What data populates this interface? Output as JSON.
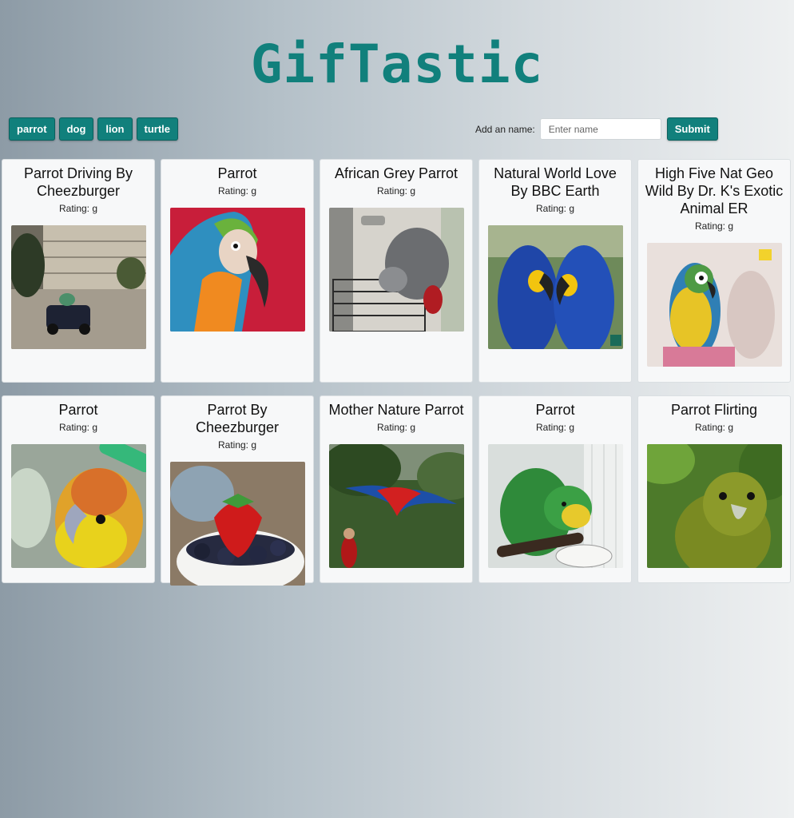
{
  "app": {
    "title": "GifTastic"
  },
  "topics": [
    "parrot",
    "dog",
    "lion",
    "turtle"
  ],
  "add_form": {
    "label": "Add an name:",
    "placeholder": "Enter name",
    "submit_label": "Submit"
  },
  "gifs": [
    {
      "title": "Parrot Driving By Cheezburger",
      "rating": "Rating: g"
    },
    {
      "title": "Parrot",
      "rating": "Rating: g"
    },
    {
      "title": "African Grey Parrot",
      "rating": "Rating: g"
    },
    {
      "title": "Natural World Love By BBC Earth",
      "rating": "Rating: g"
    },
    {
      "title": "High Five Nat Geo Wild By Dr. K's Exotic Animal ER",
      "rating": "Rating: g"
    },
    {
      "title": "Parrot",
      "rating": "Rating: g"
    },
    {
      "title": "Parrot By Cheezburger",
      "rating": "Rating: g"
    },
    {
      "title": "Mother Nature Parrot",
      "rating": "Rating: g"
    },
    {
      "title": "Parrot",
      "rating": "Rating: g"
    },
    {
      "title": "Parrot Flirting",
      "rating": "Rating: g"
    }
  ],
  "colors": {
    "accent": "#11807c",
    "card_bg": "#f7f8f9"
  }
}
